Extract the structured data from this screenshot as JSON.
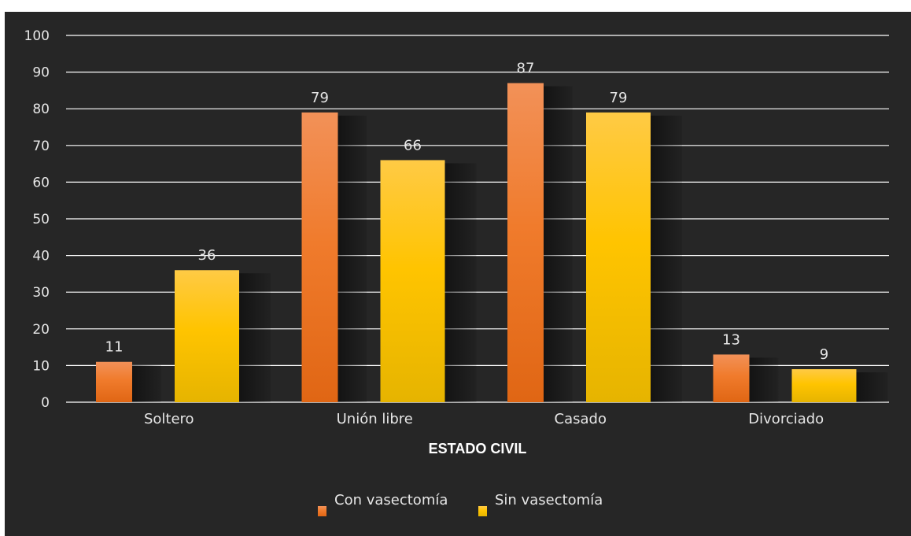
{
  "chart_data": {
    "type": "bar",
    "categories": [
      "Soltero",
      "Unión libre",
      "Casado",
      "Divorciado"
    ],
    "series": [
      {
        "name": "Con vasectomía",
        "values": [
          11,
          79,
          87,
          13
        ],
        "color": "#ED7D31"
      },
      {
        "name": "Sin vasectomía",
        "values": [
          36,
          66,
          79,
          9
        ],
        "color": "#FFC000"
      }
    ],
    "title": "",
    "xlabel": "ESTADO CIVIL",
    "ylabel": "",
    "ylim": [
      0,
      100
    ],
    "yticks": [
      0,
      10,
      20,
      30,
      40,
      50,
      60,
      70,
      80,
      90,
      100
    ],
    "grid": true,
    "legend": "bottom",
    "background": "#262626"
  }
}
